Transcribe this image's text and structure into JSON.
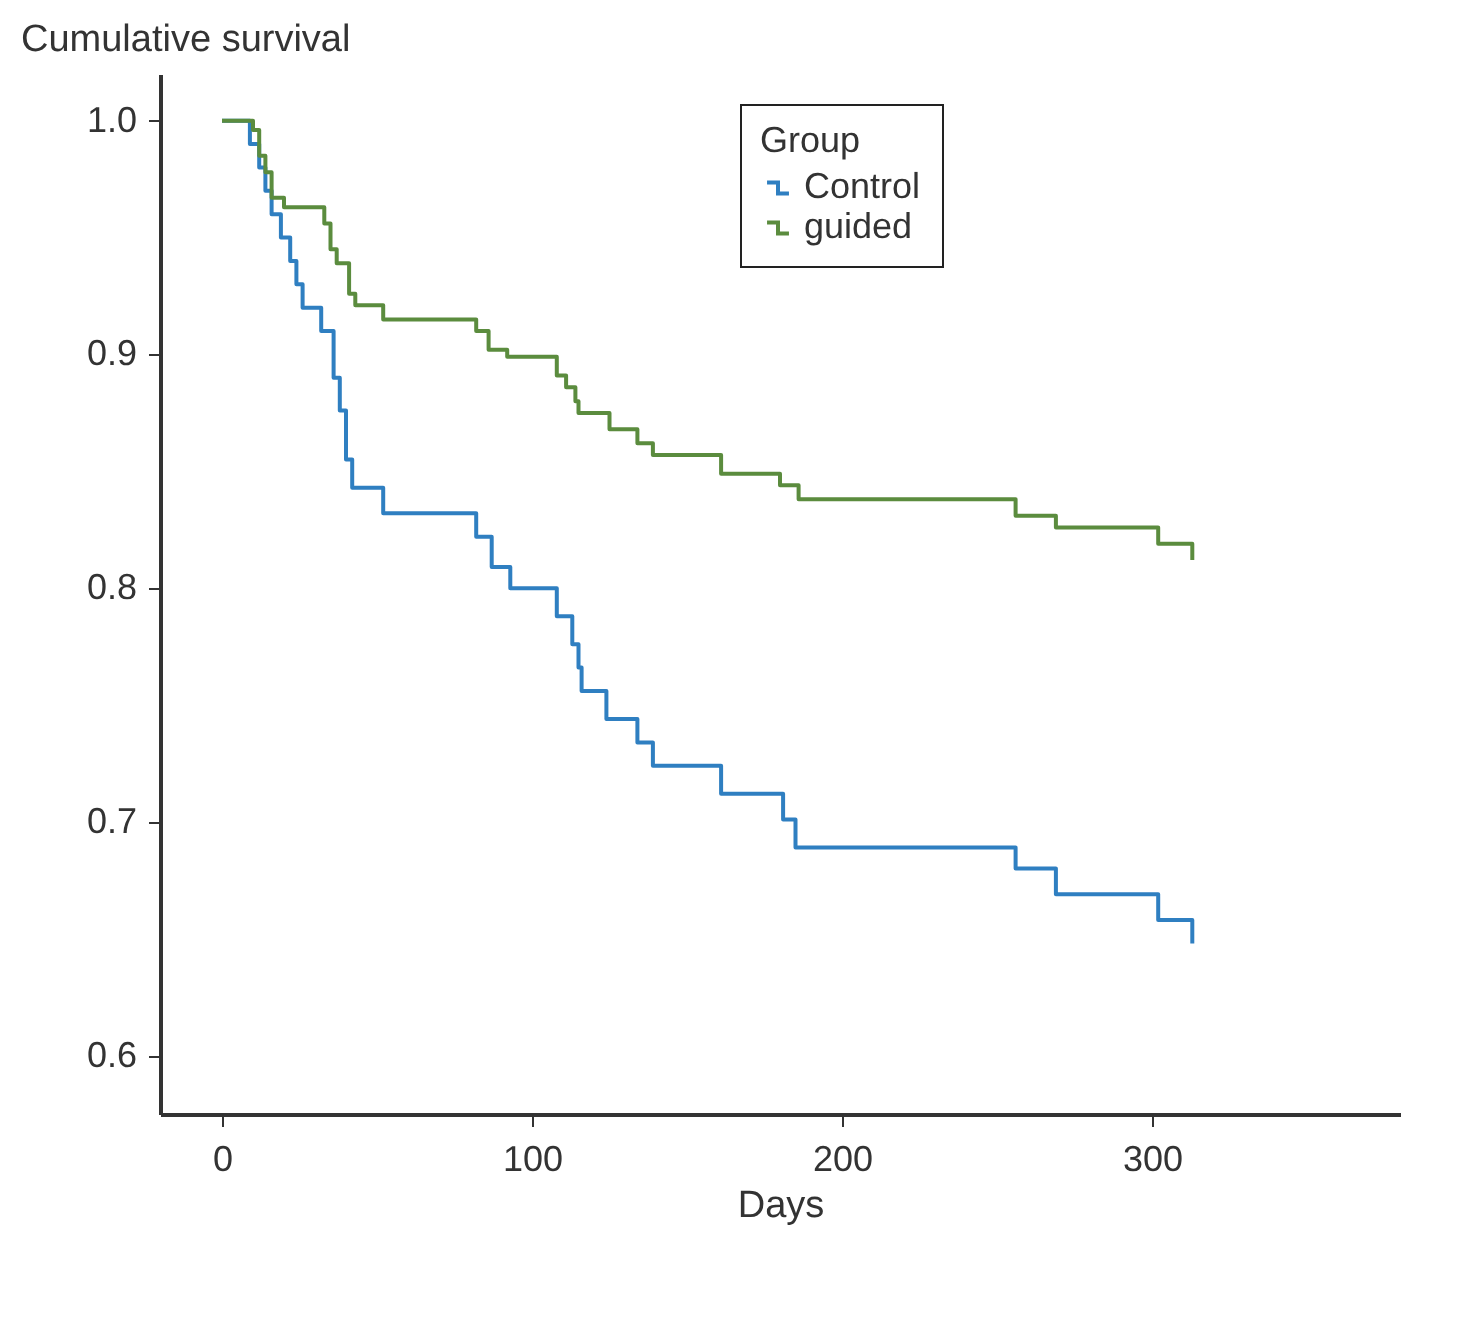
{
  "chart_data": {
    "type": "step",
    "xlabel": "Days",
    "ylabel": "Cumulative survival",
    "legend_title": "Group",
    "legend": "top right",
    "grid": false,
    "xlim": [
      -20,
      380
    ],
    "xticks": [
      0,
      100,
      200,
      300
    ],
    "ylim": [
      0.575,
      1.02
    ],
    "yticks": [
      {
        "value": 0.6,
        "label": "0.6"
      },
      {
        "value": 0.7,
        "label": "0.7"
      },
      {
        "value": 0.8,
        "label": "0.8"
      },
      {
        "value": 0.9,
        "label": "0.9"
      },
      {
        "value": 1.0,
        "label": "1.0"
      }
    ],
    "series": [
      {
        "name": "Control",
        "color": "#2f7fc1",
        "x": [
          0,
          9,
          12,
          14,
          16,
          19,
          22,
          24,
          26,
          32,
          36,
          38,
          40,
          42,
          52,
          82,
          87,
          93,
          108,
          113,
          115,
          116,
          124,
          134,
          139,
          161,
          181,
          185,
          256,
          269,
          302,
          313
        ],
        "values": [
          1.0,
          0.99,
          0.98,
          0.97,
          0.96,
          0.95,
          0.94,
          0.93,
          0.92,
          0.91,
          0.89,
          0.876,
          0.855,
          0.843,
          0.832,
          0.822,
          0.809,
          0.8,
          0.788,
          0.776,
          0.766,
          0.756,
          0.744,
          0.734,
          0.724,
          0.712,
          0.701,
          0.689,
          0.68,
          0.669,
          0.658,
          0.648
        ]
      },
      {
        "name": "guided",
        "color": "#5b8c3e",
        "x": [
          0,
          10,
          12,
          14,
          16,
          20,
          33,
          35,
          37,
          41,
          43,
          52,
          82,
          86,
          92,
          108,
          111,
          114,
          115,
          125,
          134,
          139,
          161,
          180,
          186,
          256,
          269,
          302,
          313
        ],
        "values": [
          1.0,
          0.996,
          0.985,
          0.978,
          0.967,
          0.963,
          0.956,
          0.945,
          0.939,
          0.926,
          0.921,
          0.915,
          0.91,
          0.902,
          0.899,
          0.891,
          0.886,
          0.88,
          0.875,
          0.868,
          0.862,
          0.857,
          0.849,
          0.844,
          0.838,
          0.831,
          0.826,
          0.819,
          0.812
        ]
      }
    ]
  }
}
